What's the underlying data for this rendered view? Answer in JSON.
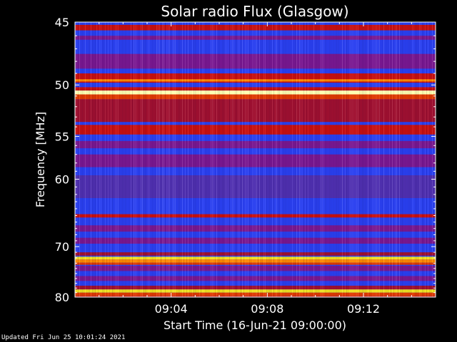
{
  "chart_data": {
    "type": "heatmap",
    "title": "Solar radio Flux (Glasgow)",
    "xlabel": "Start Time (16-Jun-21 09:00:00)",
    "ylabel": "Frequency [MHz]",
    "x_tick_labels": [
      "09:04",
      "09:08",
      "09:12"
    ],
    "x_tick_values_min": [
      4,
      8,
      12
    ],
    "xlim_min": [
      0,
      15
    ],
    "y_tick_values": [
      45,
      50,
      55,
      60,
      70,
      80
    ],
    "ylim": [
      45,
      80
    ],
    "y_scale": "reciprocal",
    "grid": false,
    "colormap": [
      "#1020c0",
      "#2a40f0",
      "#5030b0",
      "#7a1890",
      "#a01030",
      "#c81010",
      "#e03a00",
      "#ff8a00",
      "#f0e020",
      "#ffffb0"
    ],
    "background_level": 0.12,
    "bands": [
      {
        "f_min": 45.2,
        "f_max": 45.6,
        "level": 0.55
      },
      {
        "f_min": 46.0,
        "f_max": 46.3,
        "level": 0.3
      },
      {
        "f_min": 47.4,
        "f_max": 48.6,
        "level": 0.35
      },
      {
        "f_min": 49.0,
        "f_max": 49.8,
        "level": 0.55
      },
      {
        "f_min": 49.5,
        "f_max": 49.7,
        "level": 0.8
      },
      {
        "f_min": 50.2,
        "f_max": 50.5,
        "level": 0.6
      },
      {
        "f_min": 50.5,
        "f_max": 50.85,
        "level": 0.95
      },
      {
        "f_min": 50.85,
        "f_max": 51.3,
        "level": 0.7
      },
      {
        "f_min": 51.3,
        "f_max": 53.5,
        "level": 0.42
      },
      {
        "f_min": 53.8,
        "f_max": 54.8,
        "level": 0.55
      },
      {
        "f_min": 55.5,
        "f_max": 56.3,
        "level": 0.36
      },
      {
        "f_min": 57.0,
        "f_max": 58.5,
        "level": 0.3
      },
      {
        "f_min": 59.5,
        "f_max": 62.5,
        "level": 0.22
      },
      {
        "f_min": 64.8,
        "f_max": 65.3,
        "level": 0.57
      },
      {
        "f_min": 66.5,
        "f_max": 67.5,
        "level": 0.28
      },
      {
        "f_min": 68.5,
        "f_max": 69.5,
        "level": 0.3
      },
      {
        "f_min": 71.0,
        "f_max": 71.6,
        "level": 0.4
      },
      {
        "f_min": 71.8,
        "f_max": 72.3,
        "level": 0.92
      },
      {
        "f_min": 72.3,
        "f_max": 72.9,
        "level": 0.82
      },
      {
        "f_min": 72.9,
        "f_max": 73.3,
        "level": 0.62
      },
      {
        "f_min": 73.5,
        "f_max": 74.5,
        "level": 0.32
      },
      {
        "f_min": 75.5,
        "f_max": 76.5,
        "level": 0.3
      },
      {
        "f_min": 77.5,
        "f_max": 78.3,
        "level": 0.4
      },
      {
        "f_min": 78.3,
        "f_max": 79.0,
        "level": 0.85
      },
      {
        "f_min": 79.0,
        "f_max": 79.8,
        "level": 0.72
      },
      {
        "f_min": 79.8,
        "f_max": 80.0,
        "level": 0.52
      }
    ]
  },
  "footer": {
    "updated_text": "Updated Fri Jun 25 10:01:24 2021"
  }
}
